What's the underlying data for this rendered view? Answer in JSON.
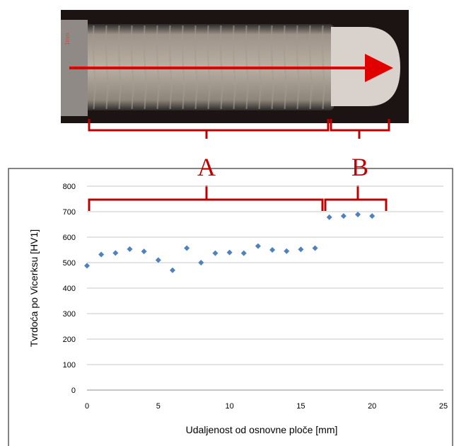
{
  "photo": {
    "scale_mark": "1mm"
  },
  "annotations": {
    "region_a": "A",
    "region_b": "B"
  },
  "colors": {
    "bracket": "#c00000",
    "marker": "#4f81bd",
    "grid": "#c8c8c8",
    "axis_text": "#000000"
  },
  "chart_data": {
    "type": "scatter",
    "title": "",
    "xlabel": "Udaljenost od osnovne ploče [mm]",
    "ylabel": "Tvrdoća po Vicerksu [HV1]",
    "xlim": [
      0,
      25
    ],
    "ylim": [
      0,
      800
    ],
    "x_ticks": [
      0,
      5,
      10,
      15,
      20,
      25
    ],
    "y_ticks": [
      0,
      100,
      200,
      300,
      400,
      500,
      600,
      700,
      800
    ],
    "grid": "horizontal",
    "series": [
      {
        "x": [
          0,
          1,
          2,
          3,
          4,
          5,
          6,
          7,
          8,
          9,
          10,
          11,
          12,
          13,
          14,
          15,
          16,
          17,
          18,
          19,
          20
        ],
        "y": [
          488,
          532,
          538,
          553,
          544,
          510,
          470,
          557,
          500,
          537,
          540,
          537,
          565,
          550,
          545,
          552,
          557,
          678,
          683,
          689,
          683
        ]
      }
    ]
  }
}
